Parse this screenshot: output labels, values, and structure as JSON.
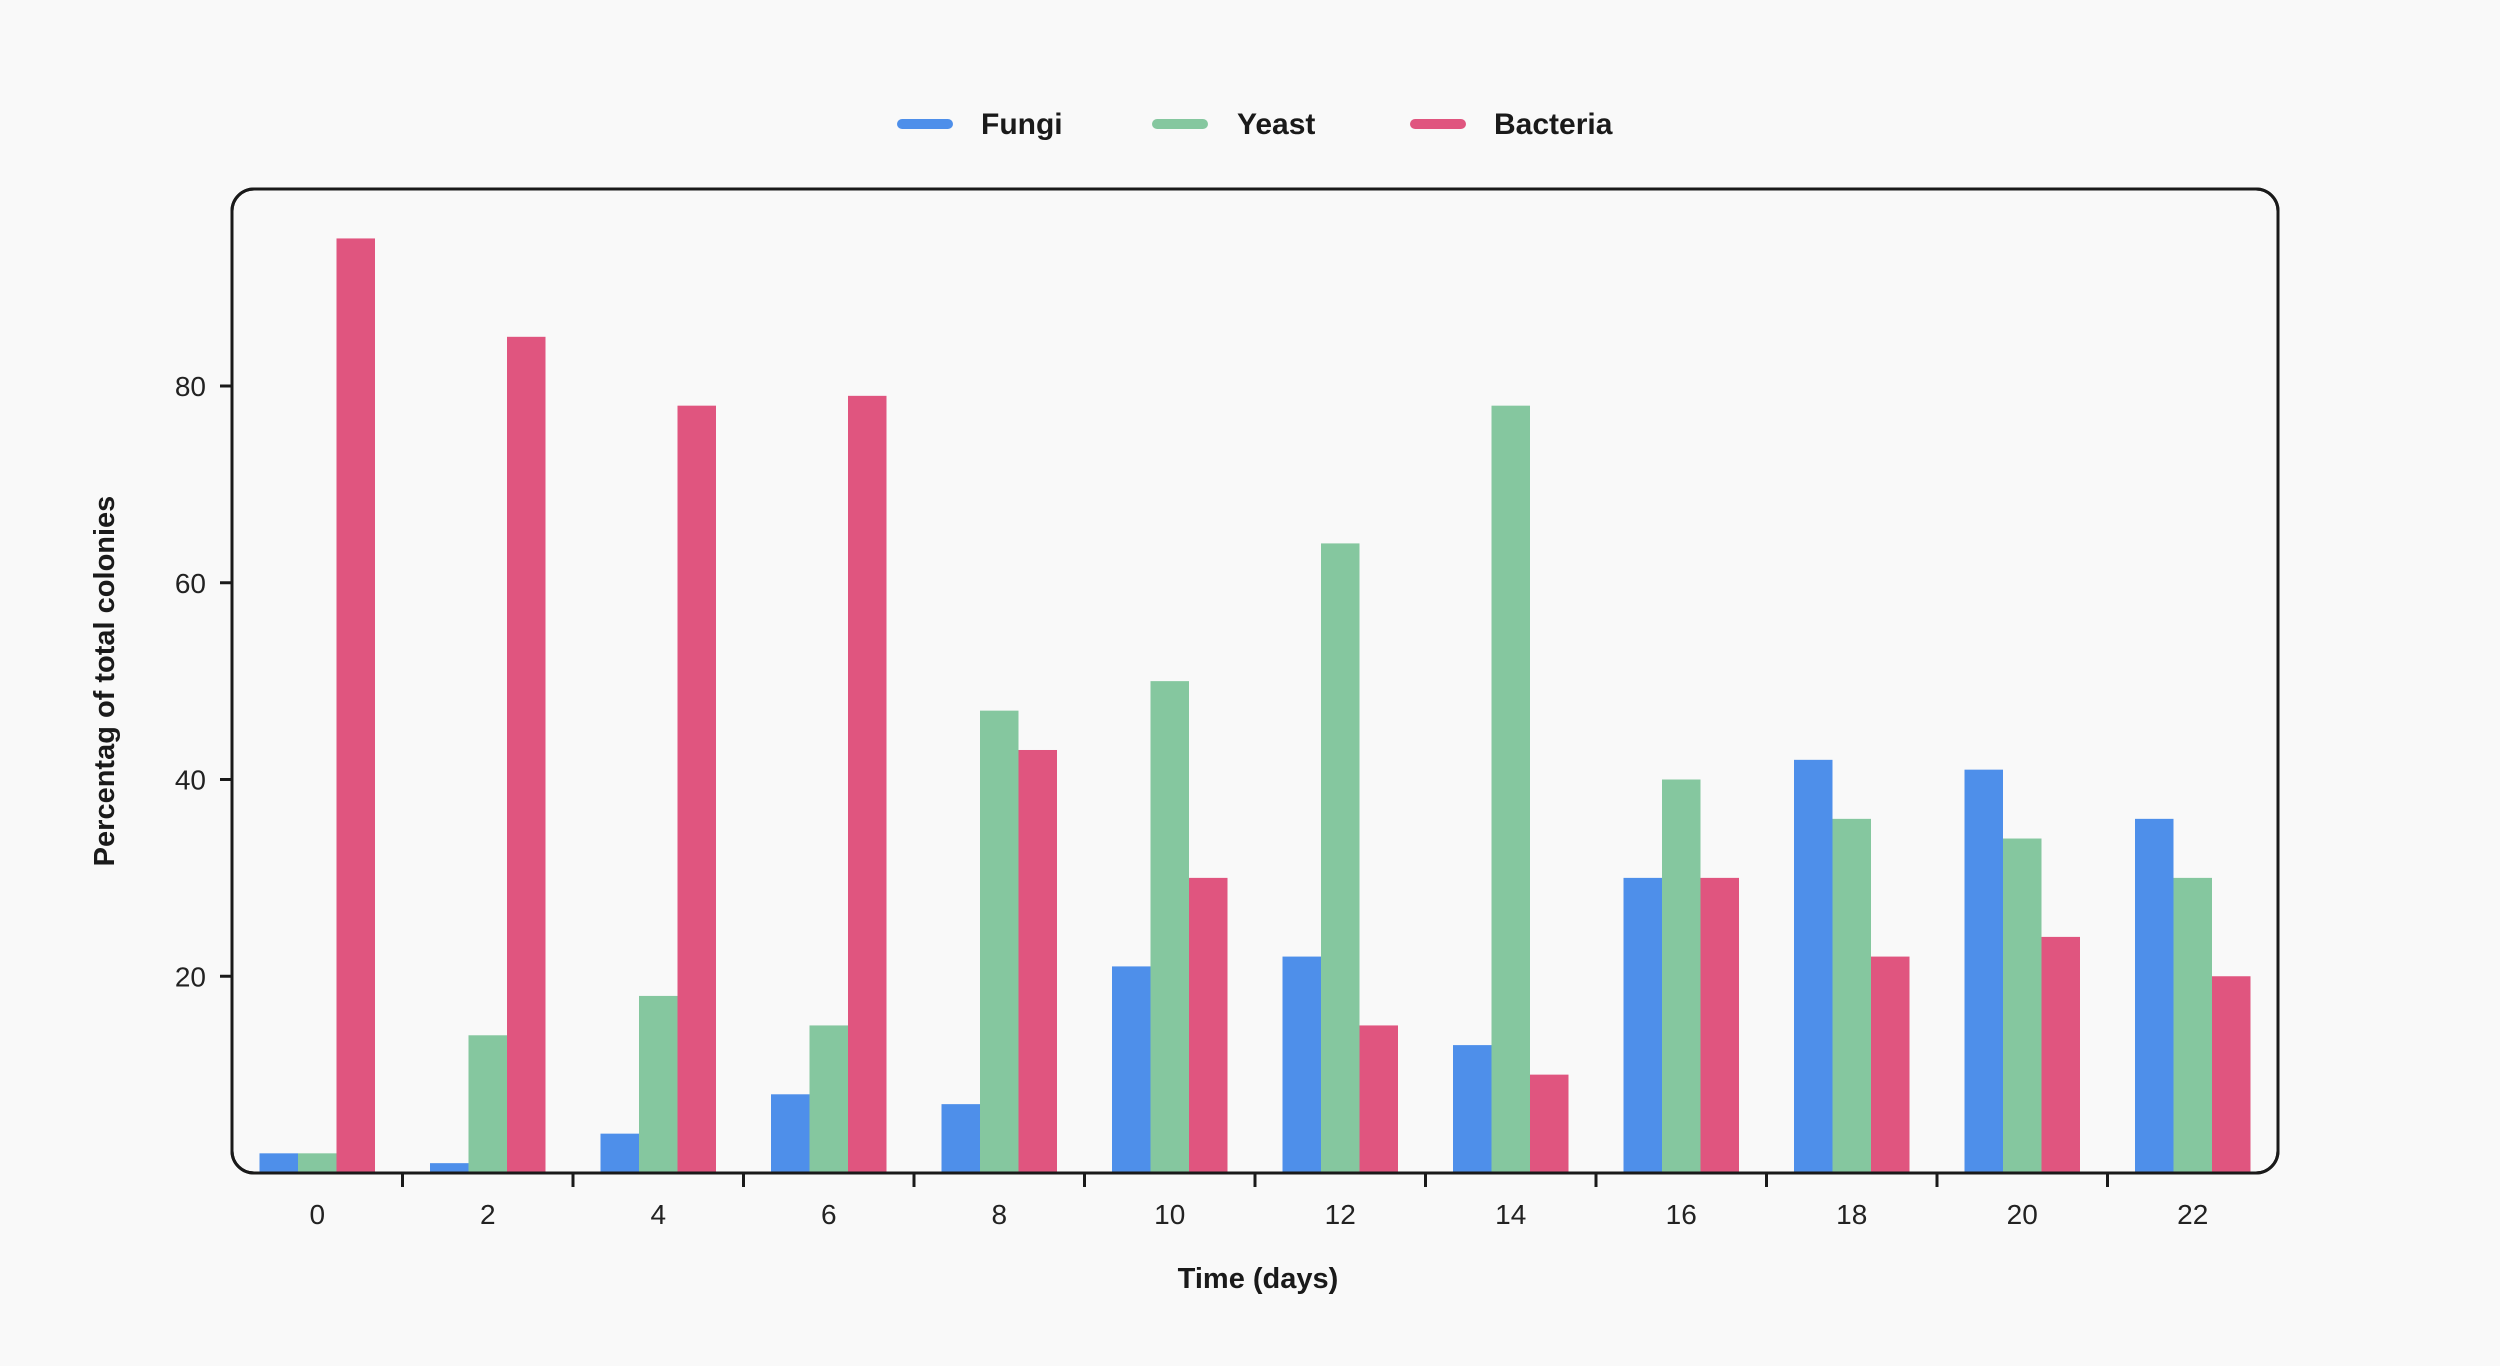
{
  "chart_data": {
    "type": "bar",
    "title": "",
    "xlabel": "Time (days)",
    "ylabel": "Percentag of total colonies",
    "categories": [
      "0",
      "2",
      "4",
      "6",
      "8",
      "10",
      "12",
      "14",
      "16",
      "18",
      "20",
      "22"
    ],
    "series": [
      {
        "name": "Fungi",
        "color": "#4e8fea",
        "values": [
          2,
          1,
          4,
          8,
          7,
          21,
          22,
          13,
          30,
          42,
          41,
          36
        ]
      },
      {
        "name": "Yeast",
        "color": "#85c79f",
        "values": [
          2,
          14,
          18,
          15,
          47,
          50,
          64,
          78,
          40,
          36,
          34,
          30
        ]
      },
      {
        "name": "Bacteria",
        "color": "#e0557f",
        "values": [
          95,
          85,
          78,
          79,
          43,
          30,
          15,
          10,
          30,
          22,
          24,
          20
        ]
      }
    ],
    "yticks": [
      20,
      40,
      60,
      80
    ],
    "ylim": [
      0,
      100
    ],
    "grid": false,
    "legend_position": "top-center"
  }
}
